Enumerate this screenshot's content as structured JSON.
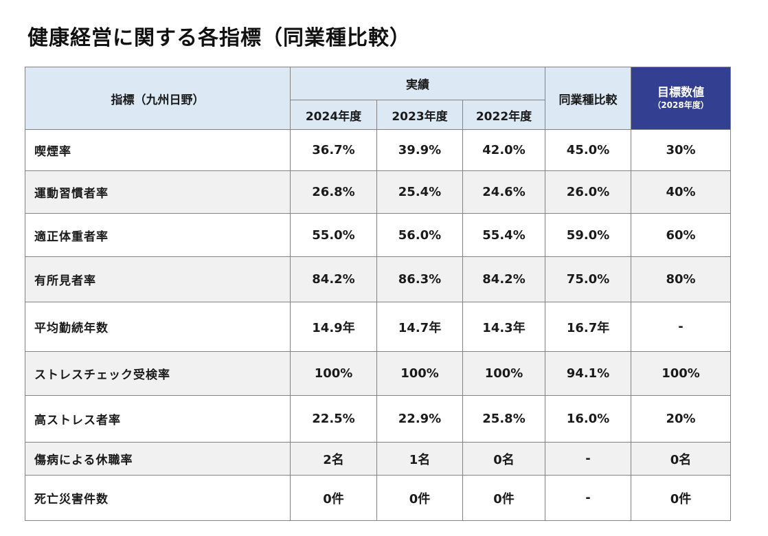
{
  "title": "健康経営に関する各指標（同業種比較）",
  "colors": {
    "header_bg": "#dde8f5",
    "target_header_bg": "#333f90",
    "target_header_text": "#ffffff",
    "zebra_row_bg": "#f1f1f1",
    "grid_border": "#828282",
    "text": "#1a1a1a"
  },
  "table": {
    "header": {
      "indicator": "指標（九州日野）",
      "results_group": "実績",
      "years": [
        "2024年度",
        "2023年度",
        "2022年度"
      ],
      "industry": "同業種比較",
      "target_line1": "目標数値",
      "target_line2": "（2028年度）"
    },
    "rows": [
      {
        "label": "喫煙率",
        "y2024": "36.7%",
        "y2023": "39.9%",
        "y2022": "42.0%",
        "industry": "45.0%",
        "target": "30%"
      },
      {
        "label": "運動習慣者率",
        "y2024": "26.8%",
        "y2023": "25.4%",
        "y2022": "24.6%",
        "industry": "26.0%",
        "target": "40%"
      },
      {
        "label": "適正体重者率",
        "y2024": "55.0%",
        "y2023": "56.0%",
        "y2022": "55.4%",
        "industry": "59.0%",
        "target": "60%"
      },
      {
        "label": "有所見者率",
        "y2024": "84.2%",
        "y2023": "86.3%",
        "y2022": "84.2%",
        "industry": "75.0%",
        "target": "80%"
      },
      {
        "label": "平均勤続年数",
        "y2024": "14.9年",
        "y2023": "14.7年",
        "y2022": "14.3年",
        "industry": "16.7年",
        "target": "-"
      },
      {
        "label": "ストレスチェック受検率",
        "y2024": "100%",
        "y2023": "100%",
        "y2022": "100%",
        "industry": "94.1%",
        "target": "100%"
      },
      {
        "label": "高ストレス者率",
        "y2024": "22.5%",
        "y2023": "22.9%",
        "y2022": "25.8%",
        "industry": "16.0%",
        "target": "20%"
      },
      {
        "label": "傷病による休職率",
        "y2024": "2名",
        "y2023": "1名",
        "y2022": "0名",
        "industry": "-",
        "target": "0名"
      },
      {
        "label": "死亡災害件数",
        "y2024": "0件",
        "y2023": "0件",
        "y2022": "0件",
        "industry": "-",
        "target": "0件"
      }
    ]
  }
}
